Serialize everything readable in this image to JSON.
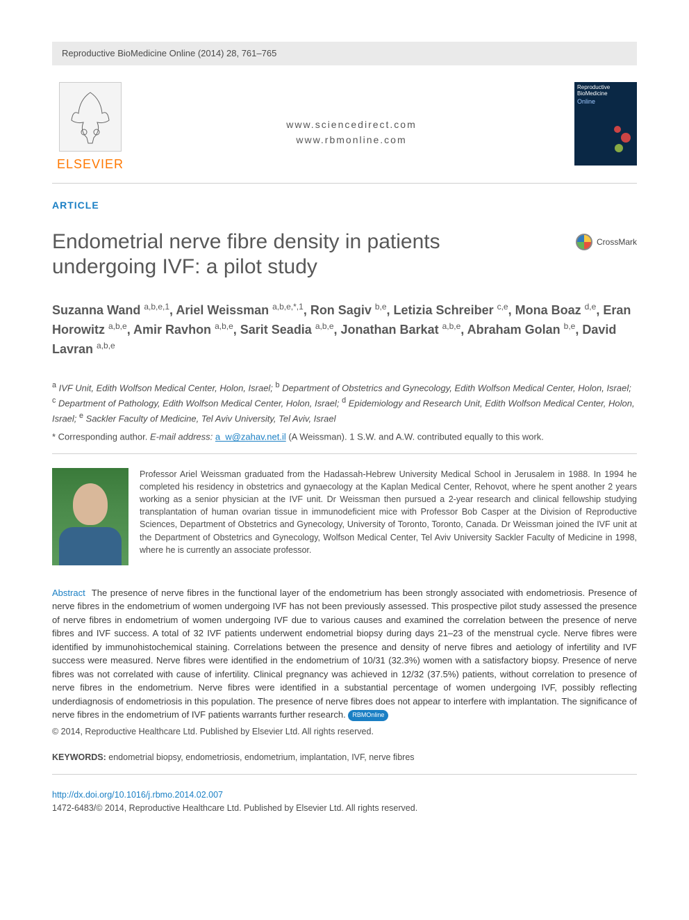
{
  "journal_header": "Reproductive BioMedicine Online (2014) 28, 761–765",
  "publisher": {
    "name": "ELSEVIER",
    "logo_color": "#ff7800"
  },
  "center_links": {
    "line1": "www.sciencedirect.com",
    "line2": "www.rbmonline.com"
  },
  "journal_cover": {
    "title_line1": "Reproductive",
    "title_line2": "BioMedicine",
    "online": "Online",
    "bg_color": "#0a2845"
  },
  "article_label": "ARTICLE",
  "title": "Endometrial nerve fibre density in patients undergoing IVF: a pilot study",
  "crossmark_label": "CrossMark",
  "authors_html": "Suzanna Wand <sup>a,b,e,1</sup>, Ariel Weissman <sup>a,b,e,*,1</sup>, Ron Sagiv <sup>b,e</sup>, Letizia Schreiber <sup>c,e</sup>, Mona Boaz <sup>d,e</sup>, Eran Horowitz <sup>a,b,e</sup>, Amir Ravhon <sup>a,b,e</sup>, Sarit Seadia <sup>a,b,e</sup>, Jonathan Barkat <sup>a,b,e</sup>, Abraham Golan <sup>b,e</sup>, David Lavran <sup>a,b,e</sup>",
  "affiliations_html": "<sup>a</sup> IVF Unit, Edith Wolfson Medical Center, Holon, Israel; <sup>b</sup> Department of Obstetrics and Gynecology, Edith Wolfson Medical Center, Holon, Israel; <sup>c</sup> Department of Pathology, Edith Wolfson Medical Center, Holon, Israel; <sup>d</sup> Epidemiology and Research Unit, Edith Wolfson Medical Center, Holon, Israel; <sup>e</sup> Sackler Faculty of Medicine, Tel Aviv University, Tel Aviv, Israel",
  "corresponding": {
    "prefix": "* Corresponding author.  ",
    "email_label": "E-mail address:",
    "email": "a_w@zahav.net.il",
    "name": "(A Weissman).",
    "note": "1  S.W. and A.W. contributed equally to this work."
  },
  "bio": "Professor Ariel Weissman graduated from the Hadassah-Hebrew University Medical School in Jerusalem in 1988. In 1994 he completed his residency in obstetrics and gynaecology at the Kaplan Medical Center, Rehovot, where he spent another 2 years working as a senior physician at the IVF unit. Dr Weissman then pursued a 2-year research and clinical fellowship studying transplantation of human ovarian tissue in immunodeficient mice with Professor Bob Casper at the Division of Reproductive Sciences, Department of Obstetrics and Gynecology, University of Toronto, Toronto, Canada. Dr Weissman joined the IVF unit at the Department of Obstetrics and Gynecology, Wolfson Medical Center, Tel Aviv University Sackler Faculty of Medicine in 1998, where he is currently an associate professor.",
  "abstract": {
    "label": "Abstract",
    "text": "The presence of nerve fibres in the functional layer of the endometrium has been strongly associated with endometriosis. Presence of nerve fibres in the endometrium of women undergoing IVF has not been previously assessed. This prospective pilot study assessed the presence of nerve fibres in endometrium of women undergoing IVF due to various causes and examined the correlation between the presence of nerve fibres and IVF success. A total of 32 IVF patients underwent endometrial biopsy during days 21–23 of the menstrual cycle. Nerve fibres were identified by immunohistochemical staining. Correlations between the presence and density of nerve fibres and aetiology of infertility and IVF success were measured. Nerve fibres were identified in the endometrium of 10/31 (32.3%) women with a satisfactory biopsy. Presence of nerve fibres was not correlated with cause of infertility. Clinical pregnancy was achieved in 12/32 (37.5%) patients, without correlation to presence of nerve fibres in the endometrium. Nerve fibres were identified in a substantial percentage of women undergoing IVF, possibly reflecting underdiagnosis of endometriosis in this population. The presence of nerve fibres does not appear to interfere with implantation. The significance of nerve fibres in the endometrium of IVF patients warrants further research.",
    "badge": "RBMOnline"
  },
  "copyright": "© 2014, Reproductive Healthcare Ltd. Published by Elsevier Ltd. All rights reserved.",
  "keywords": {
    "label": "KEYWORDS:",
    "list": "endometrial biopsy, endometriosis, endometrium, implantation, IVF, nerve fibres"
  },
  "doi": {
    "url": "http://dx.doi.org/10.1016/j.rbmo.2014.02.007",
    "issn_line": "1472-6483/© 2014, Reproductive Healthcare Ltd. Published by Elsevier Ltd. All rights reserved."
  },
  "colors": {
    "link": "#1a7fc4",
    "heading": "#585858",
    "body": "#4a4a4a",
    "rule": "#cfcfcf",
    "header_bg": "#eaeaea"
  },
  "typography": {
    "title_fontsize": 30,
    "authors_fontsize": 18,
    "body_fontsize": 13,
    "small_fontsize": 12.5
  }
}
